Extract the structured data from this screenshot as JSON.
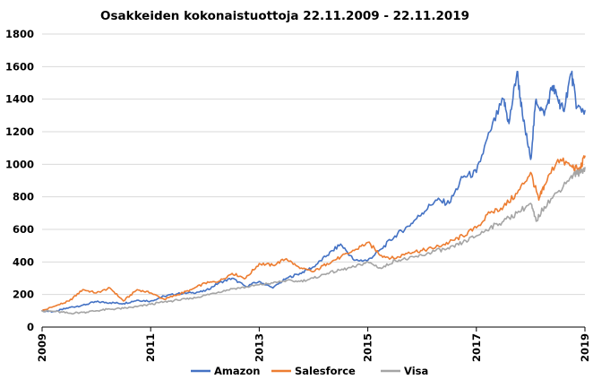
{
  "chart_data": {
    "type": "line",
    "title": "Osakkeiden kokonaistuottoja 22.11.2009  - 22.11.2019",
    "xlabel": "",
    "ylabel": "",
    "xlim": [
      2009,
      2019
    ],
    "ylim": [
      0,
      1800
    ],
    "x_ticks": [
      "2009",
      "2011",
      "2013",
      "2015",
      "2017",
      "2019"
    ],
    "y_ticks": [
      "0",
      "200",
      "400",
      "600",
      "800",
      "1000",
      "1200",
      "1400",
      "1600",
      "1800"
    ],
    "grid": "horizontal",
    "legend": "bottom",
    "series": [
      {
        "name": "Amazon",
        "color": "#4472c4",
        "x": [
          2009.0,
          2009.25,
          2009.5,
          2009.75,
          2010.0,
          2010.25,
          2010.5,
          2010.75,
          2011.0,
          2011.25,
          2011.5,
          2011.75,
          2012.0,
          2012.25,
          2012.5,
          2012.75,
          2013.0,
          2013.25,
          2013.5,
          2013.75,
          2014.0,
          2014.25,
          2014.5,
          2014.75,
          2015.0,
          2015.25,
          2015.5,
          2015.75,
          2016.0,
          2016.25,
          2016.5,
          2016.75,
          2017.0,
          2017.25,
          2017.5,
          2017.6,
          2017.75,
          2017.85,
          2018.0,
          2018.1,
          2018.25,
          2018.4,
          2018.5,
          2018.6,
          2018.75,
          2018.85,
          2019.0
        ],
        "y": [
          100,
          95,
          120,
          135,
          155,
          150,
          145,
          165,
          160,
          190,
          205,
          210,
          220,
          270,
          300,
          250,
          280,
          240,
          300,
          330,
          370,
          440,
          510,
          410,
          410,
          480,
          560,
          620,
          700,
          780,
          760,
          920,
          950,
          1200,
          1400,
          1250,
          1570,
          1300,
          1030,
          1400,
          1300,
          1480,
          1400,
          1330,
          1560,
          1350,
          1330
        ]
      },
      {
        "name": "Salesforce",
        "color": "#ed7d31",
        "x": [
          2009.0,
          2009.25,
          2009.5,
          2009.75,
          2010.0,
          2010.25,
          2010.5,
          2010.75,
          2011.0,
          2011.25,
          2011.5,
          2011.75,
          2012.0,
          2012.25,
          2012.5,
          2012.75,
          2013.0,
          2013.25,
          2013.5,
          2013.75,
          2014.0,
          2014.25,
          2014.5,
          2014.75,
          2015.0,
          2015.25,
          2015.5,
          2015.75,
          2016.0,
          2016.25,
          2016.5,
          2016.75,
          2017.0,
          2017.25,
          2017.5,
          2017.75,
          2018.0,
          2018.15,
          2018.25,
          2018.5,
          2018.75,
          2018.9,
          2019.0
        ],
        "y": [
          100,
          130,
          160,
          230,
          210,
          240,
          160,
          230,
          210,
          170,
          200,
          230,
          270,
          280,
          330,
          300,
          390,
          380,
          420,
          360,
          340,
          390,
          430,
          470,
          520,
          440,
          420,
          460,
          470,
          490,
          520,
          560,
          610,
          700,
          740,
          820,
          950,
          780,
          870,
          1030,
          990,
          960,
          1050
        ]
      },
      {
        "name": "Visa",
        "color": "#a5a5a5",
        "x": [
          2009.0,
          2009.25,
          2009.5,
          2009.75,
          2010.0,
          2010.25,
          2010.5,
          2010.75,
          2011.0,
          2011.25,
          2011.5,
          2011.75,
          2012.0,
          2012.25,
          2012.5,
          2012.75,
          2013.0,
          2013.25,
          2013.5,
          2013.75,
          2014.0,
          2014.25,
          2014.5,
          2014.75,
          2015.0,
          2015.25,
          2015.5,
          2015.75,
          2016.0,
          2016.25,
          2016.5,
          2016.75,
          2017.0,
          2017.25,
          2017.5,
          2017.75,
          2018.0,
          2018.1,
          2018.25,
          2018.5,
          2018.75,
          2018.9,
          2019.0
        ],
        "y": [
          100,
          95,
          85,
          90,
          100,
          110,
          115,
          125,
          140,
          155,
          165,
          175,
          195,
          215,
          235,
          245,
          260,
          270,
          285,
          280,
          300,
          330,
          350,
          370,
          400,
          360,
          410,
          420,
          440,
          470,
          480,
          520,
          560,
          610,
          650,
          700,
          760,
          650,
          740,
          830,
          930,
          950,
          980
        ]
      }
    ]
  }
}
